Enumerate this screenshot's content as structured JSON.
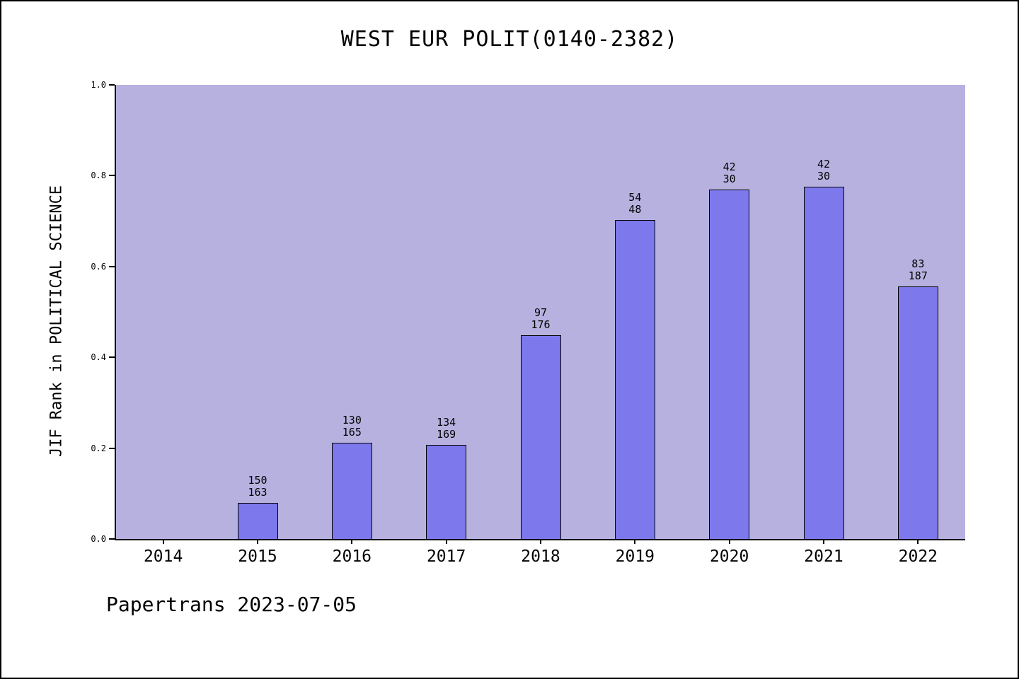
{
  "page": {
    "footer": "Papertrans 2023-07-05"
  },
  "chart_data": {
    "type": "bar",
    "title": "WEST EUR POLIT(0140-2382)",
    "ylabel": "JIF Rank in POLITICAL SCIENCE",
    "xlabel": "",
    "ylim": [
      0,
      1
    ],
    "yticks": [
      "0.0",
      "0.2",
      "0.4",
      "0.6",
      "0.8",
      "1.0"
    ],
    "grid": false,
    "legend": null,
    "categories": [
      "2014",
      "2015",
      "2016",
      "2017",
      "2018",
      "2019",
      "2020",
      "2021",
      "2022"
    ],
    "bars": [
      {
        "category": "2015",
        "value": 0.08,
        "label_top": "150",
        "label_bottom": "163"
      },
      {
        "category": "2016",
        "value": 0.212,
        "label_top": "130",
        "label_bottom": "165"
      },
      {
        "category": "2017",
        "value": 0.207,
        "label_top": "134",
        "label_bottom": "169"
      },
      {
        "category": "2018",
        "value": 0.449,
        "label_top": "97",
        "label_bottom": "176"
      },
      {
        "category": "2019",
        "value": 0.702,
        "label_top": "54",
        "label_bottom": "48"
      },
      {
        "category": "2020",
        "value": 0.77,
        "label_top": "42",
        "label_bottom": "30"
      },
      {
        "category": "2021",
        "value": 0.776,
        "label_top": "42",
        "label_bottom": "30"
      },
      {
        "category": "2022",
        "value": 0.556,
        "label_top": "83",
        "label_bottom": "187"
      }
    ],
    "colors": {
      "plot_bg": "#b7b1e0",
      "bar_fill": "#7d79ec",
      "bar_edge": "#000000",
      "text": "#000000"
    }
  }
}
